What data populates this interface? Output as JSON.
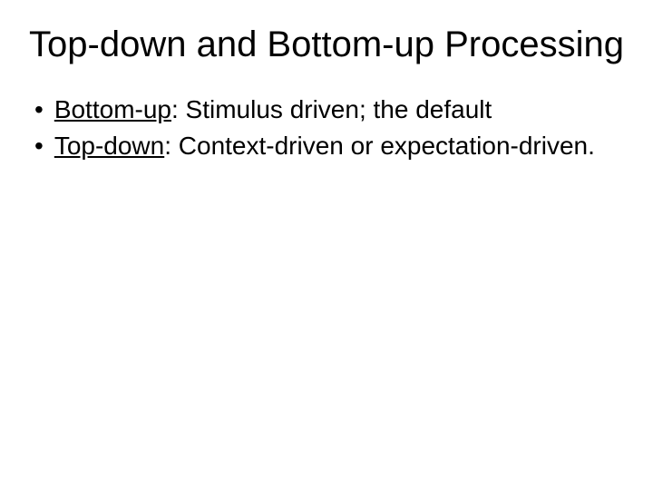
{
  "slide": {
    "title": "Top-down and Bottom-up Processing",
    "bullets": [
      {
        "term": "Bottom-up",
        "definition": ":  Stimulus driven; the default"
      },
      {
        "term": "Top-down",
        "definition": ":  Context-driven or expectation-driven."
      }
    ],
    "styles": {
      "background_color": "#ffffff",
      "text_color": "#000000",
      "title_fontsize": 40,
      "body_fontsize": 28,
      "font_family": "Arial"
    }
  }
}
